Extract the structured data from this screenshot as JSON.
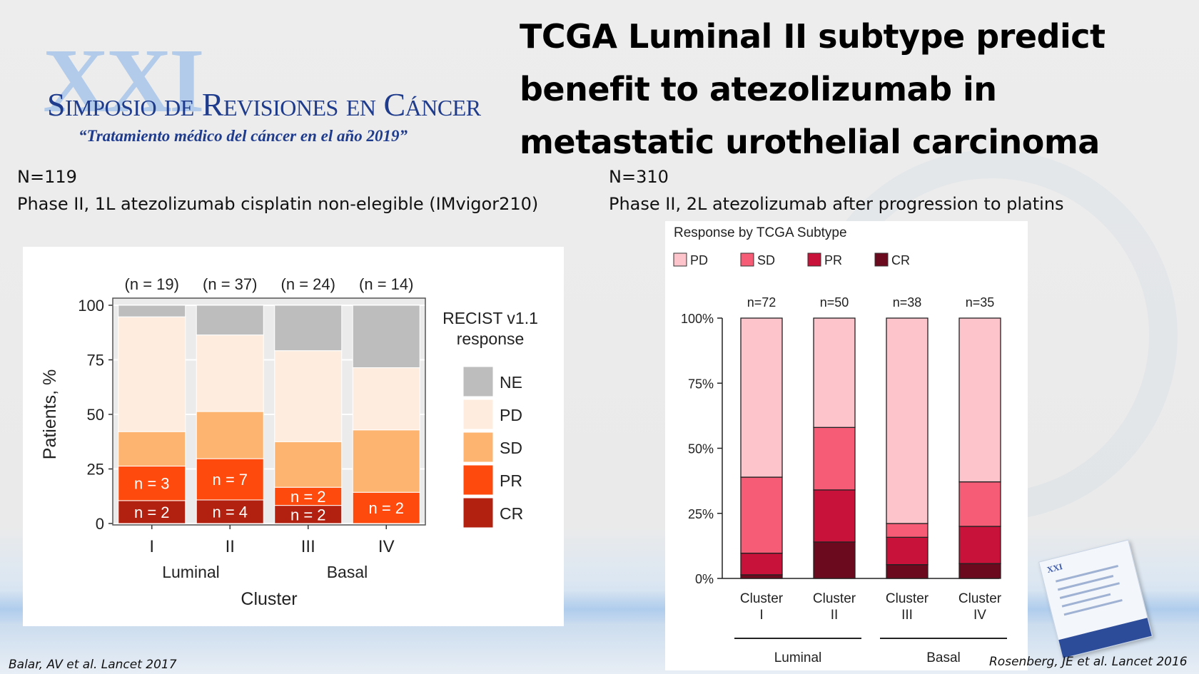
{
  "logo": {
    "roman": "XXI",
    "name": "Simposio de Revisiones en Cáncer",
    "tagline": "“Tratamiento médico del cáncer en el año 2019”"
  },
  "title_lines": [
    "TCGA Luminal II subtype predict",
    "benefit to atezolizumab in",
    "metastatic urothelial carcinoma"
  ],
  "left_study": {
    "n": "N=119",
    "description": "Phase II, 1L atezolizumab cisplatin non-elegible (IMvigor210)"
  },
  "right_study": {
    "n": "N=310",
    "description": "Phase II, 2L atezolizumab after progression to platins"
  },
  "citations": {
    "left": "Balar, AV et al. Lancet 2017",
    "right": "Rosenberg, JE et al. Lancet 2016"
  },
  "chart_data": [
    {
      "type": "bar",
      "stacked": true,
      "categories": [
        "I",
        "II",
        "III",
        "IV"
      ],
      "group_labels": [
        {
          "label": "Luminal",
          "categories": [
            "I",
            "II"
          ]
        },
        {
          "label": "Basal",
          "categories": [
            "III",
            "IV"
          ]
        }
      ],
      "n_labels": [
        "(n = 19)",
        "(n = 37)",
        "(n = 24)",
        "(n = 14)"
      ],
      "series": [
        {
          "name": "CR",
          "color": "#b2200f",
          "values": [
            10.5,
            10.8,
            8.3,
            0
          ]
        },
        {
          "name": "PR",
          "color": "#fe4a0c",
          "values": [
            15.8,
            18.9,
            8.3,
            14.3
          ]
        },
        {
          "name": "SD",
          "color": "#fdb471",
          "values": [
            15.8,
            21.6,
            20.9,
            28.6
          ]
        },
        {
          "name": "PD",
          "color": "#feeddf",
          "values": [
            52.6,
            35.1,
            41.7,
            28.5
          ]
        },
        {
          "name": "NE",
          "color": "#bdbdbd",
          "values": [
            5.3,
            13.6,
            20.8,
            28.6
          ]
        }
      ],
      "annotations": [
        {
          "category": "I",
          "series": "PR",
          "text": "n = 3"
        },
        {
          "category": "I",
          "series": "CR",
          "text": "n = 2"
        },
        {
          "category": "II",
          "series": "PR",
          "text": "n = 7"
        },
        {
          "category": "II",
          "series": "CR",
          "text": "n = 4"
        },
        {
          "category": "III",
          "series": "PR",
          "text": "n = 2"
        },
        {
          "category": "III",
          "series": "CR",
          "text": "n = 2"
        },
        {
          "category": "IV",
          "series": "PR",
          "text": "n = 2"
        }
      ],
      "legend_title_lines": [
        "RECIST v1.1",
        "response"
      ],
      "legend_order": [
        "NE",
        "PD",
        "SD",
        "PR",
        "CR"
      ],
      "legend_position": "right",
      "xlabel": "Cluster",
      "ylabel": "Patients, %",
      "ylim": [
        0,
        100
      ],
      "yticks": [
        0,
        25,
        50,
        75,
        100
      ],
      "grid": true
    },
    {
      "type": "bar",
      "stacked": true,
      "title": "Response by TCGA Subtype",
      "categories": [
        "Cluster I",
        "Cluster II",
        "Cluster III",
        "Cluster IV"
      ],
      "category_lines": [
        [
          "Cluster",
          "I"
        ],
        [
          "Cluster",
          "II"
        ],
        [
          "Cluster",
          "III"
        ],
        [
          "Cluster",
          "IV"
        ]
      ],
      "group_labels": [
        {
          "label": "Luminal",
          "categories": [
            "Cluster I",
            "Cluster II"
          ]
        },
        {
          "label": "Basal",
          "categories": [
            "Cluster III",
            "Cluster IV"
          ]
        }
      ],
      "n_labels": [
        "n=72",
        "n=50",
        "n=38",
        "n=35"
      ],
      "series": [
        {
          "name": "CR",
          "color": "#6b0a1f",
          "values": [
            1.4,
            14,
            5.3,
            5.7
          ]
        },
        {
          "name": "PR",
          "color": "#c8123a",
          "values": [
            8.3,
            20,
            10.5,
            14.3
          ]
        },
        {
          "name": "SD",
          "color": "#f75c76",
          "values": [
            29.2,
            24,
            5.3,
            17.1
          ]
        },
        {
          "name": "PD",
          "color": "#fdc4cc",
          "values": [
            61.1,
            42,
            78.9,
            62.9
          ]
        }
      ],
      "legend_order": [
        "PD",
        "SD",
        "PR",
        "CR"
      ],
      "legend_position": "top",
      "ylim": [
        0,
        100
      ],
      "yticks": [
        "0%",
        "25%",
        "50%",
        "75%",
        "100%"
      ],
      "grid": false
    }
  ]
}
